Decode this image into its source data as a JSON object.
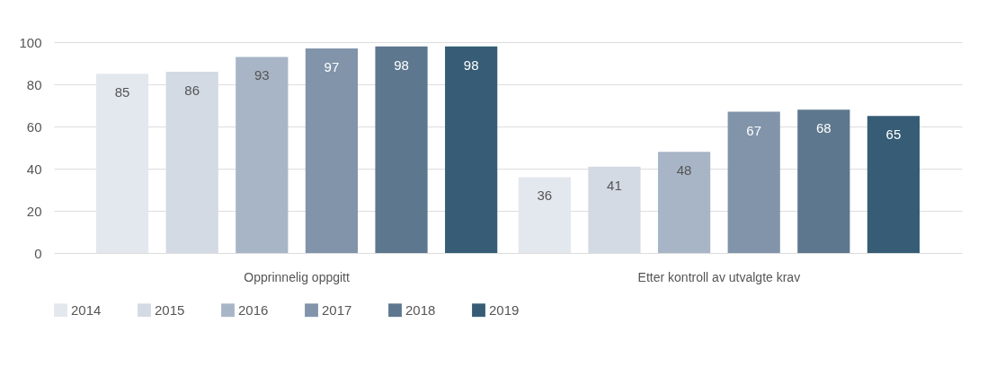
{
  "chart_data": {
    "type": "bar",
    "categories": [
      "Opprinnelig oppgitt",
      "Etter kontroll av utvalgte krav"
    ],
    "series": [
      {
        "name": "2014",
        "color": "#e3e7ee",
        "values": [
          85,
          36
        ]
      },
      {
        "name": "2015",
        "color": "#d3dae3",
        "values": [
          86,
          41
        ]
      },
      {
        "name": "2016",
        "color": "#a8b5c6",
        "values": [
          93,
          48
        ]
      },
      {
        "name": "2017",
        "color": "#8194aa",
        "values": [
          97,
          67
        ]
      },
      {
        "name": "2018",
        "color": "#5d778e",
        "values": [
          98,
          68
        ]
      },
      {
        "name": "2019",
        "color": "#365d75",
        "values": [
          98,
          65
        ]
      }
    ],
    "ylim": [
      0,
      100
    ],
    "yticks": [
      0,
      20,
      40,
      60,
      80,
      100
    ],
    "grid": "y",
    "legend": "bottom",
    "data_labels": true
  }
}
